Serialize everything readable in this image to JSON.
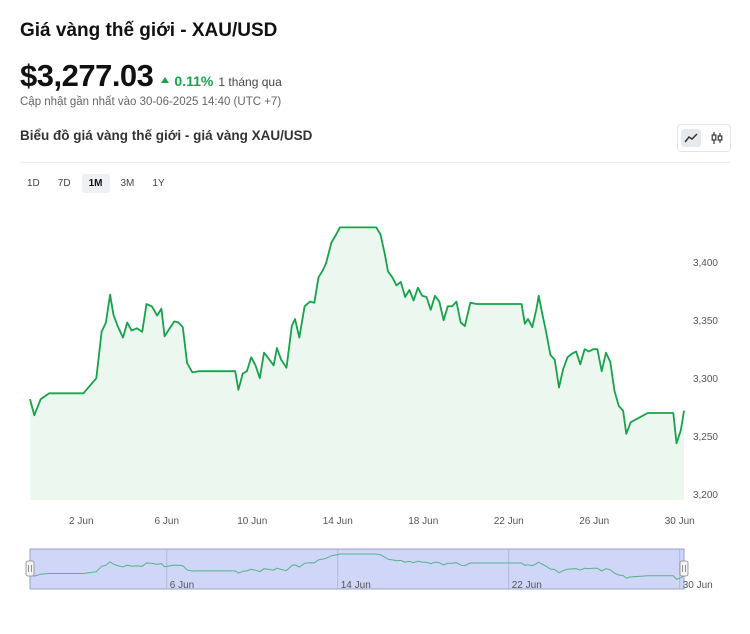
{
  "header": {
    "title": "Giá vàng thế giới - XAU/USD",
    "price": "$3,277.03",
    "change_pct": "0.11%",
    "change_period": "1 tháng qua",
    "updated": "Cập nhật gần nhất vào 30-06-2025 14:40 (UTC +7)"
  },
  "chart_header": {
    "title": "Biểu đồ giá vàng thế giới - giá vàng XAU/USD"
  },
  "icons": {
    "line": "line-chart-icon",
    "candle": "candlestick-icon"
  },
  "ranges": [
    {
      "label": "1D",
      "active": false
    },
    {
      "label": "7D",
      "active": false
    },
    {
      "label": "1M",
      "active": true
    },
    {
      "label": "3M",
      "active": false
    },
    {
      "label": "1Y",
      "active": false
    }
  ],
  "colors": {
    "line": "#16a34a",
    "fill": "#ecf8ef",
    "up": "#17a34a",
    "navigator_fill": "#cfd6f8",
    "navigator_line": "#55b38a"
  },
  "chart_data": {
    "type": "area",
    "x_axis": "date",
    "ylim": [
      3195,
      3445
    ],
    "y_ticks": [
      3200,
      3250,
      3300,
      3350,
      3400
    ],
    "y_tick_labels": [
      "3,200",
      "3,250",
      "3,300",
      "3,350",
      "3,400"
    ],
    "x_tick_labels": [
      {
        "day": 2,
        "label": "2 Jun"
      },
      {
        "day": 6,
        "label": "6 Jun"
      },
      {
        "day": 10,
        "label": "10 Jun"
      },
      {
        "day": 14,
        "label": "14 Jun"
      },
      {
        "day": 18,
        "label": "18 Jun"
      },
      {
        "day": 22,
        "label": "22 Jun"
      },
      {
        "day": 26,
        "label": "26 Jun"
      },
      {
        "day": 30,
        "label": "30 Jun"
      }
    ],
    "xlim_days": [
      -0.4,
      30.2
    ],
    "grid": false,
    "series": [
      {
        "points": [
          [
            -0.4,
            3282
          ],
          [
            -0.2,
            3268
          ],
          [
            0.1,
            3282
          ],
          [
            0.5,
            3287
          ],
          [
            1.4,
            3287
          ],
          [
            2.1,
            3287
          ],
          [
            2.7,
            3300
          ],
          [
            2.95,
            3340
          ],
          [
            3.15,
            3348
          ],
          [
            3.35,
            3372
          ],
          [
            3.5,
            3355
          ],
          [
            3.7,
            3345
          ],
          [
            3.95,
            3335
          ],
          [
            4.15,
            3348
          ],
          [
            4.35,
            3341
          ],
          [
            4.6,
            3343
          ],
          [
            4.85,
            3340
          ],
          [
            5.05,
            3364
          ],
          [
            5.3,
            3362
          ],
          [
            5.55,
            3354
          ],
          [
            5.75,
            3360
          ],
          [
            5.9,
            3336
          ],
          [
            6.1,
            3342
          ],
          [
            6.35,
            3349
          ],
          [
            6.55,
            3348
          ],
          [
            6.75,
            3344
          ],
          [
            6.95,
            3313
          ],
          [
            7.2,
            3305
          ],
          [
            7.5,
            3306
          ],
          [
            8.5,
            3306
          ],
          [
            9.2,
            3306
          ],
          [
            9.35,
            3290
          ],
          [
            9.55,
            3304
          ],
          [
            9.75,
            3306
          ],
          [
            9.95,
            3318
          ],
          [
            10.15,
            3311
          ],
          [
            10.35,
            3300
          ],
          [
            10.55,
            3322
          ],
          [
            10.8,
            3316
          ],
          [
            11.0,
            3311
          ],
          [
            11.15,
            3326
          ],
          [
            11.35,
            3316
          ],
          [
            11.6,
            3309
          ],
          [
            11.85,
            3345
          ],
          [
            12.0,
            3351
          ],
          [
            12.2,
            3335
          ],
          [
            12.45,
            3362
          ],
          [
            12.7,
            3366
          ],
          [
            12.9,
            3365
          ],
          [
            13.1,
            3387
          ],
          [
            13.3,
            3393
          ],
          [
            13.45,
            3399
          ],
          [
            13.7,
            3417
          ],
          [
            13.9,
            3423
          ],
          [
            14.1,
            3430
          ],
          [
            14.3,
            3430
          ],
          [
            15.0,
            3430
          ],
          [
            15.8,
            3430
          ],
          [
            16.0,
            3424
          ],
          [
            16.2,
            3407
          ],
          [
            16.35,
            3392
          ],
          [
            16.55,
            3387
          ],
          [
            16.75,
            3380
          ],
          [
            16.95,
            3383
          ],
          [
            17.15,
            3370
          ],
          [
            17.35,
            3376
          ],
          [
            17.55,
            3367
          ],
          [
            17.75,
            3378
          ],
          [
            17.95,
            3371
          ],
          [
            18.15,
            3370
          ],
          [
            18.35,
            3359
          ],
          [
            18.55,
            3371
          ],
          [
            18.75,
            3366
          ],
          [
            18.95,
            3350
          ],
          [
            19.15,
            3362
          ],
          [
            19.35,
            3362
          ],
          [
            19.55,
            3366
          ],
          [
            19.75,
            3348
          ],
          [
            19.95,
            3345
          ],
          [
            20.2,
            3365
          ],
          [
            20.5,
            3364
          ],
          [
            20.8,
            3364
          ],
          [
            21.5,
            3364
          ],
          [
            22.0,
            3364
          ],
          [
            22.6,
            3364
          ],
          [
            22.75,
            3347
          ],
          [
            22.9,
            3351
          ],
          [
            23.1,
            3344
          ],
          [
            23.3,
            3360
          ],
          [
            23.4,
            3371
          ],
          [
            23.55,
            3357
          ],
          [
            23.75,
            3340
          ],
          [
            23.95,
            3320
          ],
          [
            24.15,
            3316
          ],
          [
            24.35,
            3292
          ],
          [
            24.55,
            3308
          ],
          [
            24.75,
            3318
          ],
          [
            24.95,
            3321
          ],
          [
            25.15,
            3323
          ],
          [
            25.35,
            3312
          ],
          [
            25.55,
            3325
          ],
          [
            25.75,
            3323
          ],
          [
            25.95,
            3325
          ],
          [
            26.15,
            3325
          ],
          [
            26.35,
            3306
          ],
          [
            26.55,
            3322
          ],
          [
            26.75,
            3314
          ],
          [
            26.95,
            3289
          ],
          [
            27.15,
            3276
          ],
          [
            27.35,
            3272
          ],
          [
            27.5,
            3252
          ],
          [
            27.7,
            3262
          ],
          [
            28.0,
            3265
          ],
          [
            28.5,
            3270
          ],
          [
            29.0,
            3270
          ],
          [
            29.7,
            3270
          ],
          [
            29.85,
            3244
          ],
          [
            30.05,
            3255
          ],
          [
            30.2,
            3272
          ]
        ]
      }
    ]
  }
}
